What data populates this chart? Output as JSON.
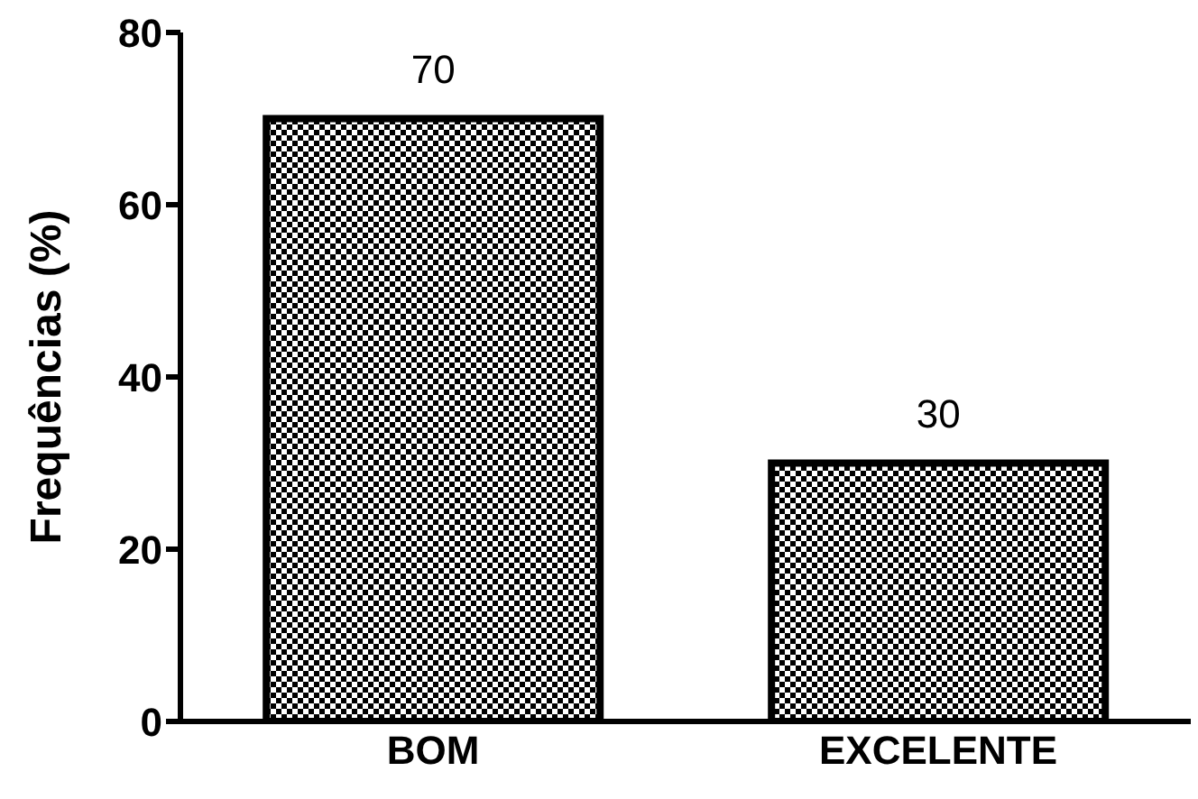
{
  "chart_data": {
    "type": "bar",
    "ylabel": "Frequências (%)",
    "categories": [
      "BOM",
      "EXCELENTE"
    ],
    "values": [
      70,
      30
    ],
    "color": "#000000",
    "ylim": [
      0,
      80
    ],
    "yticks": [
      0,
      20,
      40,
      60,
      80
    ],
    "data_labels": true,
    "grid": false
  }
}
